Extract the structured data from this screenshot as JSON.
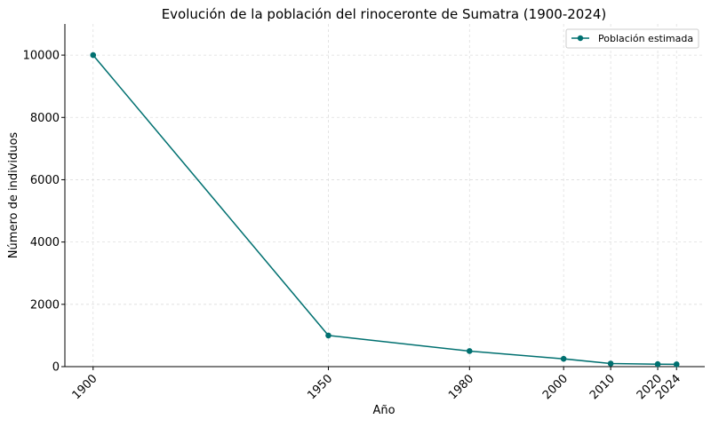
{
  "chart_data": {
    "type": "line",
    "title": "Evolución de la población del rinoceronte de Sumatra (1900-2024)",
    "xlabel": "Año",
    "ylabel": "Número de individuos",
    "x": [
      1900,
      1950,
      1980,
      2000,
      2010,
      2020,
      2024
    ],
    "x_tick_labels": [
      "1900",
      "1950",
      "1980",
      "2000",
      "2010",
      "2020",
      "2024"
    ],
    "xlim": [
      1894,
      2030
    ],
    "ylim": [
      0,
      11000
    ],
    "y_ticks": [
      0,
      2000,
      4000,
      6000,
      8000,
      10000
    ],
    "y_tick_labels": [
      "0",
      "2000",
      "4000",
      "6000",
      "8000",
      "10000"
    ],
    "series": [
      {
        "name": "Población estimada",
        "values": [
          10000,
          1000,
          500,
          250,
          100,
          80,
          75
        ],
        "color": "#007070"
      }
    ],
    "grid": true,
    "legend": "top-right"
  }
}
